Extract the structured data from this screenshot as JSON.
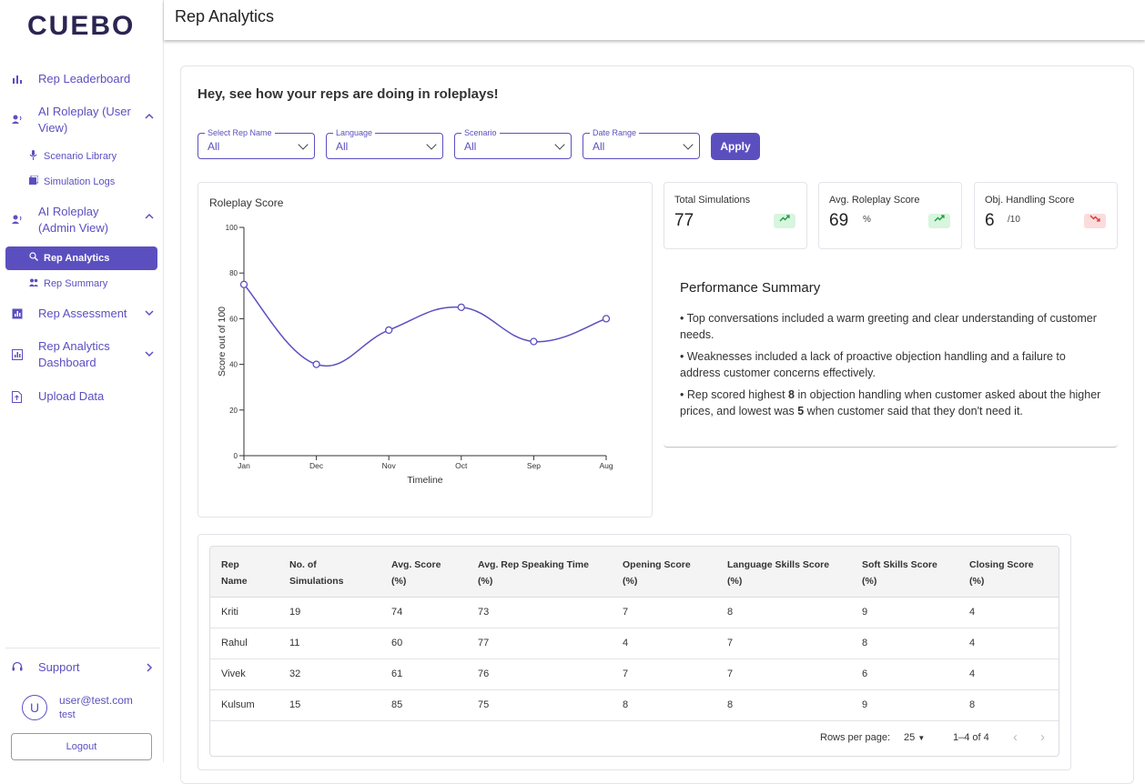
{
  "brand": {
    "logo": "CUEBO"
  },
  "sidebar": {
    "items": [
      {
        "label": "Rep Leaderboard"
      },
      {
        "label": "AI Roleplay (User View)"
      },
      {
        "label": "Scenario Library"
      },
      {
        "label": "Simulation Logs"
      },
      {
        "label": "AI Roleplay (Admin View)"
      },
      {
        "label": "Rep Analytics"
      },
      {
        "label": "Rep Summary"
      },
      {
        "label": "Rep Assessment"
      },
      {
        "label": "Rep Analytics Dashboard"
      },
      {
        "label": "Upload Data"
      }
    ],
    "support": "Support",
    "user": {
      "avatar": "U",
      "email": "user@test.com",
      "name": "test"
    },
    "logout": "Logout"
  },
  "header": {
    "title": "Rep Analytics"
  },
  "main": {
    "heading": "Hey, see how your reps are doing in roleplays!",
    "filters": [
      {
        "label": "Select Rep Name",
        "value": "All"
      },
      {
        "label": "Language",
        "value": "All"
      },
      {
        "label": "Scenario",
        "value": "All"
      },
      {
        "label": "Date Range",
        "value": "All"
      }
    ],
    "apply": "Apply"
  },
  "stats": [
    {
      "title": "Total Simulations",
      "value": "77",
      "unit": "",
      "trend": "up"
    },
    {
      "title": "Avg. Roleplay Score",
      "value": "69",
      "unit": "%",
      "trend": "up"
    },
    {
      "title": "Obj. Handling Score",
      "value": "6",
      "unit": "/10",
      "trend": "down"
    }
  ],
  "performance": {
    "title": "Performance Summary",
    "lines": [
      {
        "pre": "• Top conversations included a warm greeting and clear understanding of customer needs.",
        "bold1": "",
        "mid": "",
        "bold2": "",
        "post": ""
      },
      {
        "pre": "• Weaknesses included a lack of proactive objection handling and a failure to address customer concerns effectively.",
        "bold1": "",
        "mid": "",
        "bold2": "",
        "post": ""
      },
      {
        "pre": "• Rep scored highest ",
        "bold1": "8",
        "mid": " in objection handling when customer asked about the higher prices, and lowest was ",
        "bold2": "5",
        "post": " when customer said that they don't need it."
      }
    ]
  },
  "chart_data": {
    "type": "line",
    "title": "Roleplay Score",
    "xlabel": "Timeline",
    "ylabel": "Score out of 100",
    "categories": [
      "Jan",
      "Dec",
      "Nov",
      "Oct",
      "Sep",
      "Aug"
    ],
    "values": [
      75,
      40,
      55,
      65,
      50,
      60
    ],
    "ylim": [
      0,
      100
    ],
    "yticks": [
      0,
      20,
      40,
      60,
      80,
      100
    ],
    "grid": false,
    "color": "#5b4fc0"
  },
  "table": {
    "columns": [
      [
        "Rep",
        "Name"
      ],
      [
        "No. of",
        "Simulations"
      ],
      [
        "Avg. Score",
        "(%)"
      ],
      [
        "Avg. Rep Speaking Time",
        "(%)"
      ],
      [
        "Opening Score",
        "(%)"
      ],
      [
        "Language Skills Score",
        "(%)"
      ],
      [
        "Soft Skills Score",
        "(%)"
      ],
      [
        "Closing Score",
        "(%)"
      ]
    ],
    "rows": [
      [
        "Kriti",
        "19",
        "74",
        "73",
        "7",
        "8",
        "9",
        "4"
      ],
      [
        "Rahul",
        "11",
        "60",
        "77",
        "4",
        "7",
        "8",
        "4"
      ],
      [
        "Vivek",
        "32",
        "61",
        "76",
        "7",
        "7",
        "6",
        "4"
      ],
      [
        "Kulsum",
        "15",
        "85",
        "75",
        "8",
        "8",
        "9",
        "8"
      ]
    ],
    "pagination": {
      "rows_per_page_label": "Rows per page:",
      "rows_per_page": "25",
      "range": "1–4 of 4"
    }
  }
}
